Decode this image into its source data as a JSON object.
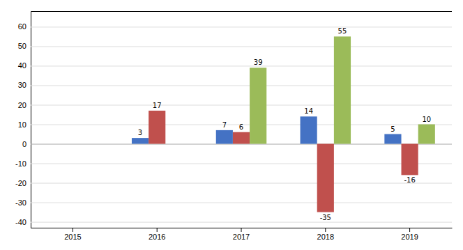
{
  "chart_data": {
    "type": "bar",
    "categories": [
      "2015",
      "2016",
      "2017",
      "2018",
      "2019"
    ],
    "series": [
      {
        "color": "#4472C4",
        "values": [
          0,
          3,
          7,
          14,
          5
        ],
        "value_labels": [
          null,
          "3",
          "7",
          "14",
          "5"
        ]
      },
      {
        "color": "#C0504D",
        "values": [
          0,
          17,
          6,
          -35,
          -16
        ],
        "value_labels": [
          null,
          "17",
          "6",
          "-35",
          "-16"
        ]
      },
      {
        "color": "#9BBB59",
        "values": [
          0,
          0,
          39,
          55,
          10
        ],
        "value_labels": [
          null,
          null,
          "39",
          "55",
          "10"
        ]
      }
    ],
    "ylim": [
      -43,
      68
    ],
    "yticks": [
      -40,
      -30,
      -20,
      -10,
      0,
      10,
      20,
      30,
      40,
      50,
      60
    ],
    "grid": true,
    "data_labels": true
  }
}
